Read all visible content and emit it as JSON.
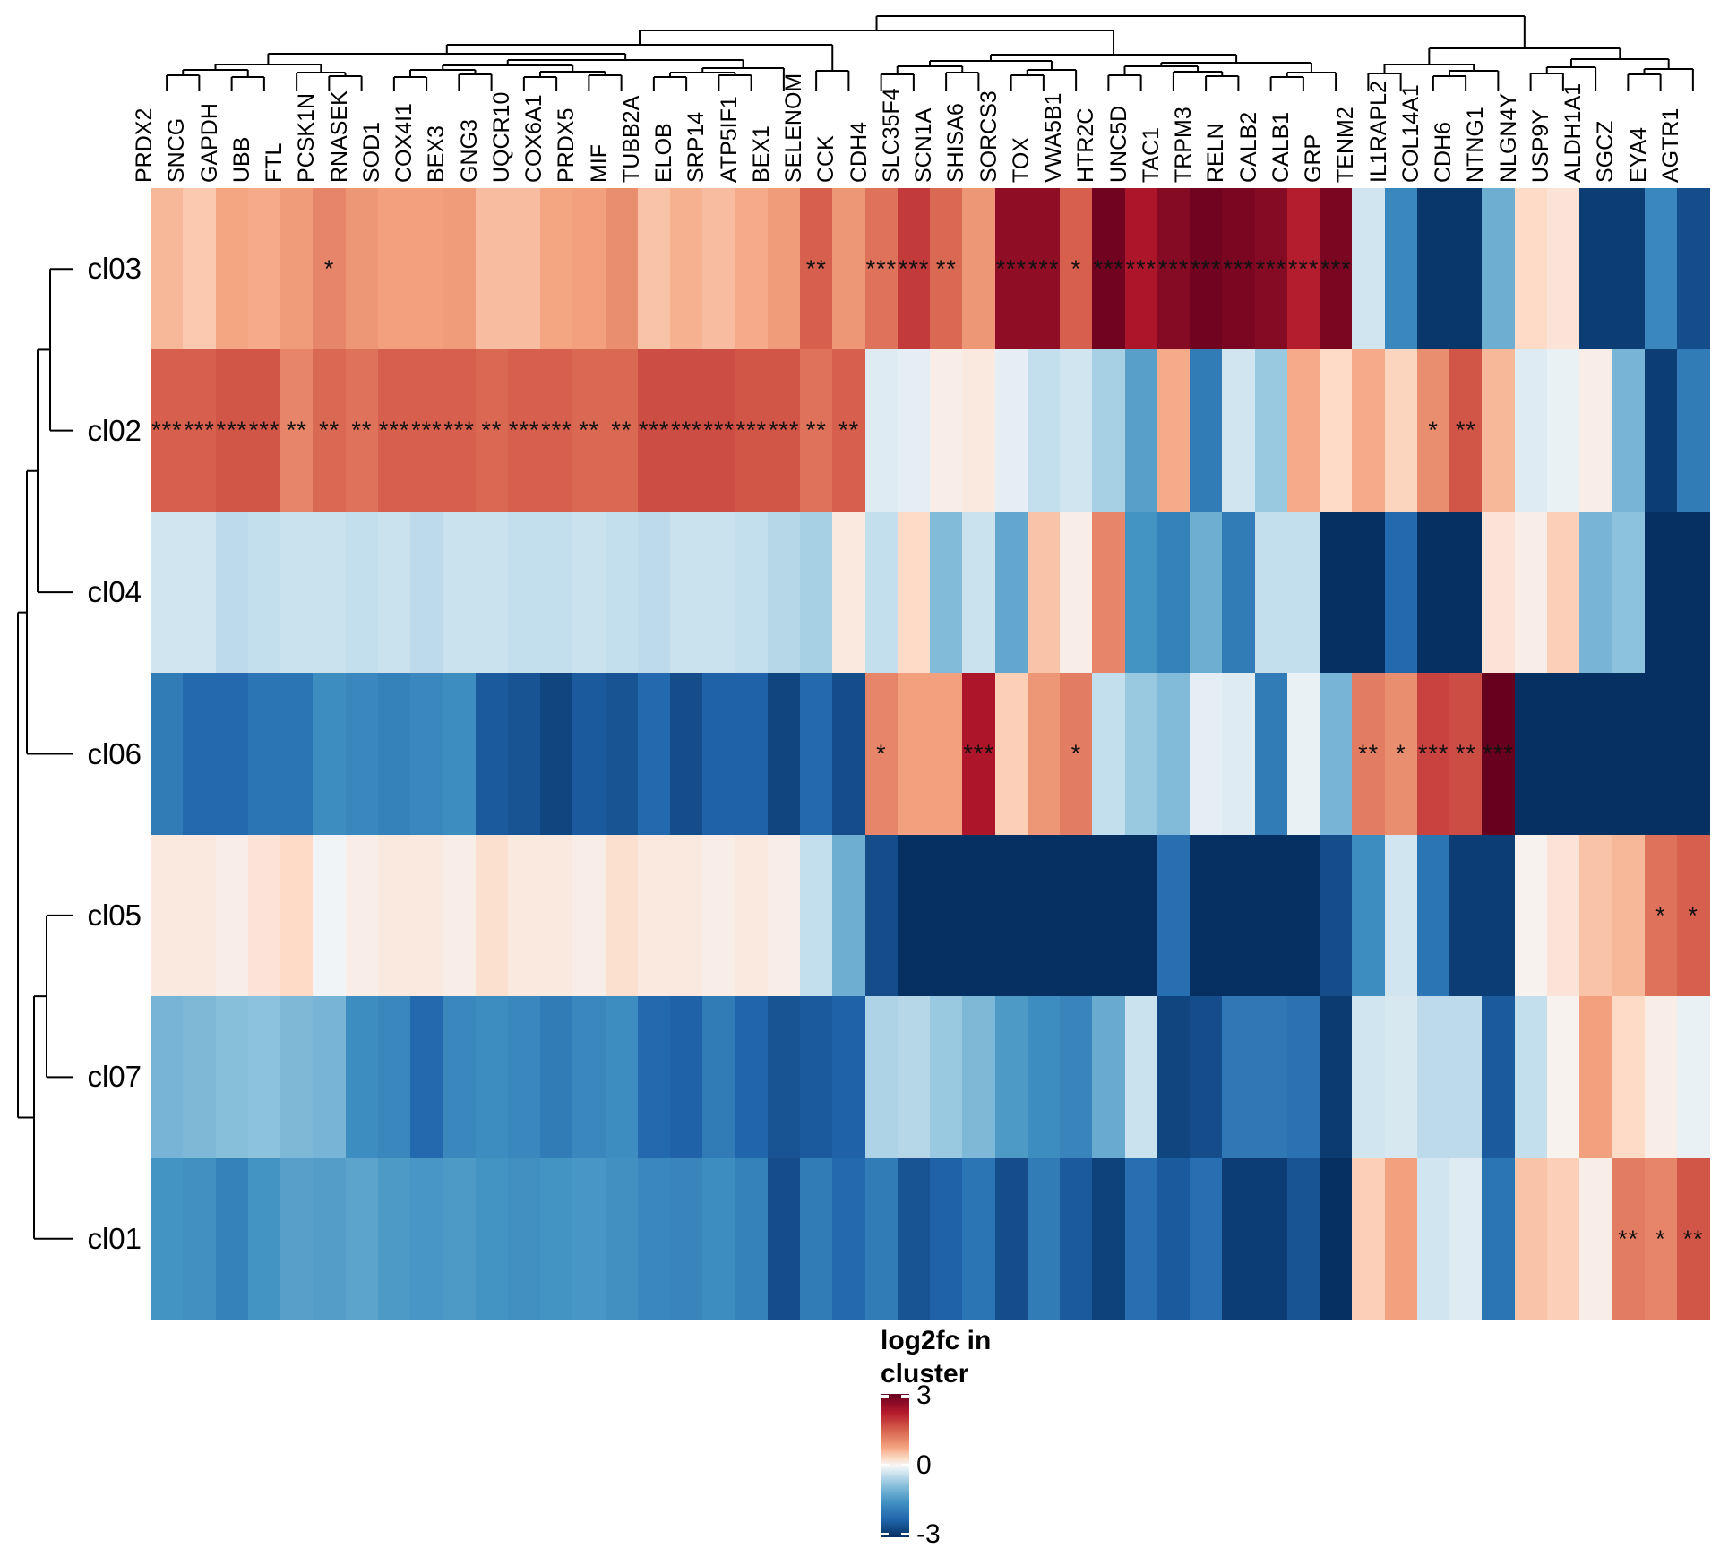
{
  "chart_data": {
    "type": "heatmap",
    "title": "",
    "legend": {
      "title": "log2fc in\ncluster",
      "ticks": [
        "3",
        "0",
        "-3"
      ],
      "position": "bottom-center"
    },
    "value_domain": [
      -3,
      3
    ],
    "grid": false,
    "colorscale": {
      "values": [
        -3,
        -2.25,
        -1.5,
        -0.75,
        -0.3,
        0,
        0.3,
        0.75,
        1.5,
        2.25,
        3
      ],
      "colors": [
        "#053061",
        "#2166ac",
        "#4393c3",
        "#92c5de",
        "#d1e5f0",
        "#f7f7f7",
        "#fddbc7",
        "#f4a582",
        "#d6604d",
        "#b2182b",
        "#67001f"
      ]
    },
    "sig_mark_color": "#111111",
    "columns": [
      "PRDX2",
      "SNCG",
      "GAPDH",
      "UBB",
      "FTL",
      "PCSK1N",
      "RNASEK",
      "SOD1",
      "COX4I1",
      "BEX3",
      "GNG3",
      "UQCR10",
      "COX6A1",
      "PRDX5",
      "MIF",
      "TUBB2A",
      "ELOB",
      "SRP14",
      "ATP5IF1",
      "BEX1",
      "SELENOM",
      "CCK",
      "CDH4",
      "SLC35F4",
      "SCN1A",
      "SHISA6",
      "SORCS3",
      "TOX",
      "VWA5B1",
      "HTR2C",
      "UNC5D",
      "TAC1",
      "TRPM3",
      "RELN",
      "CALB2",
      "CALB1",
      "GRP",
      "TENM2",
      "IL1RAPL2",
      "COL14A1",
      "CDH6",
      "NTNG1",
      "NLGN4Y",
      "USP9Y",
      "ALDH1A1",
      "SGCZ",
      "EYA4",
      "AGTR1"
    ],
    "rows": [
      "cl03",
      "cl02",
      "cl04",
      "cl06",
      "cl05",
      "cl07",
      "cl01"
    ],
    "series": [
      {
        "name": "cl03",
        "values": [
          0.6,
          0.45,
          0.75,
          0.7,
          0.85,
          1.1,
          0.9,
          0.8,
          0.8,
          0.85,
          0.55,
          0.55,
          0.75,
          0.8,
          1.0,
          0.5,
          0.65,
          0.55,
          0.7,
          0.85,
          1.5,
          0.9,
          1.3,
          1.9,
          1.4,
          0.9,
          2.6,
          2.6,
          1.5,
          2.9,
          2.3,
          2.7,
          2.9,
          2.8,
          2.7,
          2.2,
          2.8,
          -0.3,
          -1.7,
          -2.9,
          -2.9,
          -1.1,
          0.3,
          0.2,
          -2.8,
          -2.8,
          -1.7,
          -2.6
        ],
        "sig": [
          "",
          "",
          "",
          "",
          "",
          "*",
          "",
          "",
          "",
          "",
          "",
          "",
          "",
          "",
          "",
          "",
          "",
          "",
          "",
          "",
          "**",
          "",
          "***",
          "***",
          "**",
          "",
          "***",
          "***",
          "*",
          "***",
          "***",
          "***",
          "***",
          "***",
          "***",
          "***",
          "***",
          "",
          "",
          "",
          "",
          "",
          "",
          "",
          "",
          "",
          "",
          ""
        ]
      },
      {
        "name": "cl02",
        "values": [
          1.5,
          1.5,
          1.6,
          1.6,
          1.1,
          1.4,
          1.3,
          1.5,
          1.5,
          1.5,
          1.4,
          1.5,
          1.5,
          1.4,
          1.4,
          1.7,
          1.7,
          1.7,
          1.6,
          1.6,
          1.3,
          1.5,
          -0.2,
          -0.15,
          0.1,
          0.15,
          -0.15,
          -0.4,
          -0.3,
          -0.6,
          -1.3,
          0.7,
          -1.9,
          -0.3,
          -0.7,
          0.7,
          0.3,
          0.7,
          0.35,
          1.0,
          1.6,
          0.6,
          -0.2,
          -0.1,
          0.1,
          -1.0,
          -2.8,
          -1.9
        ],
        "sig": [
          "***",
          "***",
          "***",
          "***",
          "**",
          "**",
          "**",
          "***",
          "***",
          "***",
          "**",
          "***",
          "***",
          "**",
          "**",
          "***",
          "***",
          "***",
          "***",
          "***",
          "**",
          "**",
          "",
          "",
          "",
          "",
          "",
          "",
          "",
          "",
          "",
          "",
          "",
          "",
          "",
          "",
          "",
          "",
          "",
          "*",
          "**",
          "",
          "",
          "",
          "",
          "",
          "",
          ""
        ]
      },
      {
        "name": "cl04",
        "values": [
          -0.3,
          -0.3,
          -0.45,
          -0.4,
          -0.35,
          -0.35,
          -0.4,
          -0.35,
          -0.45,
          -0.35,
          -0.35,
          -0.4,
          -0.4,
          -0.35,
          -0.4,
          -0.45,
          -0.35,
          -0.35,
          -0.4,
          -0.5,
          -0.6,
          0.15,
          -0.4,
          0.3,
          -0.9,
          -0.35,
          -1.2,
          0.5,
          0.1,
          1.1,
          -1.5,
          -1.8,
          -1.1,
          -1.9,
          -0.4,
          -0.4,
          -3,
          -3,
          -2.2,
          -3,
          -3,
          0.2,
          0.1,
          0.4,
          -1.0,
          -0.8,
          -3,
          -3
        ],
        "sig": [
          "",
          "",
          "",
          "",
          "",
          "",
          "",
          "",
          "",
          "",
          "",
          "",
          "",
          "",
          "",
          "",
          "",
          "",
          "",
          "",
          "",
          "",
          "",
          "",
          "",
          "",
          "",
          "",
          "",
          "",
          "",
          "",
          "",
          "",
          "",
          "",
          "",
          "",
          "",
          "",
          "",
          "",
          "",
          "",
          "",
          "",
          "",
          ""
        ]
      },
      {
        "name": "cl06",
        "values": [
          -1.9,
          -2.2,
          -2.2,
          -2.0,
          -2.0,
          -1.6,
          -1.7,
          -1.8,
          -1.7,
          -1.6,
          -2.4,
          -2.5,
          -2.7,
          -2.4,
          -2.5,
          -2.2,
          -2.6,
          -2.3,
          -2.3,
          -2.7,
          -2.2,
          -2.6,
          1.1,
          0.8,
          0.8,
          2.3,
          0.4,
          0.9,
          1.2,
          -0.4,
          -0.7,
          -0.9,
          -0.15,
          -0.2,
          -1.9,
          -0.1,
          -1.0,
          1.2,
          1.0,
          1.8,
          1.7,
          3.0,
          -3,
          -3,
          -3,
          -3,
          -3,
          -3
        ],
        "sig": [
          "",
          "",
          "",
          "",
          "",
          "",
          "",
          "",
          "",
          "",
          "",
          "",
          "",
          "",
          "",
          "",
          "",
          "",
          "",
          "",
          "",
          "",
          "*",
          "",
          "",
          "***",
          "",
          "",
          "*",
          "",
          "",
          "",
          "",
          "",
          "",
          "",
          "",
          "**",
          "*",
          "***",
          "**",
          "***",
          "",
          "",
          "",
          "",
          "",
          ""
        ]
      },
      {
        "name": "cl05",
        "values": [
          0.15,
          0.15,
          0.1,
          0.2,
          0.3,
          -0.05,
          0.1,
          0.15,
          0.15,
          0.1,
          0.25,
          0.15,
          0.15,
          0.1,
          0.25,
          0.15,
          0.15,
          0.1,
          0.15,
          0.1,
          -0.4,
          -1.1,
          -2.6,
          -3,
          -3,
          -3,
          -3,
          -3,
          -3,
          -3,
          -3,
          -2.1,
          -3,
          -3,
          -3,
          -3,
          -2.6,
          -1.6,
          -0.3,
          -2.0,
          -2.8,
          -2.8,
          0.05,
          0.2,
          0.5,
          0.6,
          1.3,
          1.5
        ],
        "sig": [
          "",
          "",
          "",
          "",
          "",
          "",
          "",
          "",
          "",
          "",
          "",
          "",
          "",
          "",
          "",
          "",
          "",
          "",
          "",
          "",
          "",
          "",
          "",
          "",
          "",
          "",
          "",
          "",
          "",
          "",
          "",
          "",
          "",
          "",
          "",
          "",
          "",
          "",
          "",
          "",
          "",
          "",
          "",
          "",
          "",
          "",
          "*",
          "*"
        ]
      },
      {
        "name": "cl07",
        "values": [
          -1.0,
          -0.95,
          -0.85,
          -0.8,
          -0.95,
          -1.0,
          -1.6,
          -1.7,
          -2.2,
          -1.7,
          -1.6,
          -1.7,
          -1.9,
          -1.7,
          -1.6,
          -2.2,
          -2.3,
          -1.9,
          -2.25,
          -2.5,
          -2.4,
          -2.3,
          -0.55,
          -0.5,
          -0.7,
          -0.95,
          -1.4,
          -1.6,
          -1.75,
          -1.15,
          -0.35,
          -2.7,
          -2.6,
          -1.95,
          -1.95,
          -2.05,
          -2.85,
          -0.3,
          -0.25,
          -0.45,
          -0.45,
          -2.4,
          -0.4,
          0.05,
          0.8,
          0.3,
          0.1,
          -0.1
        ],
        "sig": [
          "",
          "",
          "",
          "",
          "",
          "",
          "",
          "",
          "",
          "",
          "",
          "",
          "",
          "",
          "",
          "",
          "",
          "",
          "",
          "",
          "",
          "",
          "",
          "",
          "",
          "",
          "",
          "",
          "",
          "",
          "",
          "",
          "",
          "",
          "",
          "",
          "",
          "",
          "",
          "",
          "",
          "",
          "",
          "",
          "",
          "",
          "",
          ""
        ]
      },
      {
        "name": "cl01",
        "values": [
          -1.5,
          -1.55,
          -1.8,
          -1.5,
          -1.3,
          -1.35,
          -1.25,
          -1.4,
          -1.45,
          -1.4,
          -1.5,
          -1.55,
          -1.5,
          -1.45,
          -1.55,
          -1.7,
          -1.75,
          -1.6,
          -1.8,
          -2.6,
          -1.9,
          -2.2,
          -1.9,
          -2.5,
          -2.3,
          -2.0,
          -2.6,
          -1.9,
          -2.4,
          -2.75,
          -2.1,
          -2.4,
          -2.1,
          -2.8,
          -2.8,
          -2.5,
          -3.0,
          0.4,
          0.8,
          -0.3,
          -0.2,
          -2.0,
          0.5,
          0.4,
          0.1,
          1.2,
          1.1,
          1.6
        ],
        "sig": [
          "",
          "",
          "",
          "",
          "",
          "",
          "",
          "",
          "",
          "",
          "",
          "",
          "",
          "",
          "",
          "",
          "",
          "",
          "",
          "",
          "",
          "",
          "",
          "",
          "",
          "",
          "",
          "",
          "",
          "",
          "",
          "",
          "",
          "",
          "",
          "",
          "",
          "",
          "",
          "",
          "",
          "",
          "",
          "",
          "",
          "**",
          "*",
          "**"
        ]
      }
    ],
    "col_dendrogram_tree": [
      [
        [
          [
            [
              [
                [
                  0,
                  1,
                  10
                ],
                [
                  2,
                  3,
                  8
                ],
                16
              ],
              [
                4,
                [
                  5,
                  6,
                  9
                ],
                13
              ],
              22
            ],
            [
              [
                [
                  [
                    7,
                    8,
                    8
                  ],
                  [
                    9,
                    10,
                    11
                  ],
                  16
                ],
                [
                  [
                    11,
                    12,
                    8
                  ],
                  [
                    13,
                    14,
                    10
                  ],
                  14
                ],
                21
              ],
              [
                [
                  [
                    15,
                    16,
                    8
                  ],
                  [
                    17,
                    18,
                    10
                  ],
                  13
                ],
                19,
                18
              ],
              27
            ],
            34
          ],
          [
            20,
            21,
            15
          ],
          44
        ],
        [
          [
            [
              [
                22,
                23,
                11
              ],
              [
                24,
                25,
                13
              ],
              20
            ],
            [
              [
                26,
                27,
                10
              ],
              28,
              16
            ],
            26
          ],
          [
            [
              [
                29,
                30,
                10
              ],
              [
                31,
                [
                  32,
                  33,
                  9
                ],
                14
              ],
              20
            ],
            [
              [
                34,
                35,
                8
              ],
              36,
              13
            ],
            24
          ],
          33
        ],
        60
      ],
      [
        [
          [
            37,
            38,
            12
          ],
          [
            [
              39,
              40,
              9
            ],
            41,
            15
          ],
          22
        ],
        [
          [
            [
              42,
              43,
              12
            ],
            44,
            19
          ],
          [
            [
              45,
              46,
              11
            ],
            47,
            17
          ],
          28
        ],
        40
      ],
      76
    ],
    "row_dendrogram_tree": [
      [
        [
          [
            "cl03",
            "cl02",
            26
          ],
          "cl04",
          40
        ],
        "cl06",
        52
      ],
      [
        [
          "cl05",
          "cl07",
          30
        ],
        "cl01",
        44
      ],
      62
    ]
  }
}
